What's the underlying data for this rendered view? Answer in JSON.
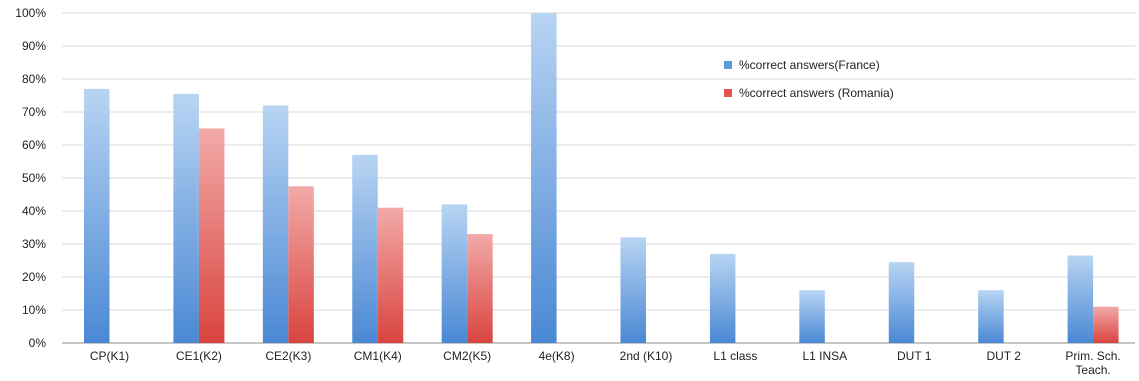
{
  "chart_data": {
    "type": "bar",
    "title": "",
    "xlabel": "",
    "ylabel": "",
    "ylim": [
      0,
      100
    ],
    "yticks": [
      "0%",
      "10%",
      "20%",
      "30%",
      "40%",
      "50%",
      "60%",
      "70%",
      "80%",
      "90%",
      "100%"
    ],
    "grid": true,
    "legend_position": "top-right",
    "categories": [
      [
        "CP(K1)"
      ],
      [
        "CE1(K2)"
      ],
      [
        "CE2(K3)"
      ],
      [
        "CM1(K4)"
      ],
      [
        "CM2(K5)"
      ],
      [
        "4e(K8)"
      ],
      [
        "2nd (K10)"
      ],
      [
        "L1 class"
      ],
      [
        "L1 INSA"
      ],
      [
        "DUT 1"
      ],
      [
        "DUT 2"
      ],
      [
        "Prim. Sch.",
        "Teach."
      ]
    ],
    "series": [
      {
        "name": "%correct answers(France)",
        "color": "#5b9bd5",
        "values": [
          77,
          75.5,
          72,
          57,
          42,
          100,
          32,
          27,
          16,
          24.5,
          16,
          26.5
        ]
      },
      {
        "name": "%correct answers (Romania)",
        "color": "#e0534f",
        "values": [
          null,
          65,
          47.5,
          41,
          33,
          null,
          null,
          null,
          null,
          null,
          null,
          11
        ]
      }
    ]
  }
}
